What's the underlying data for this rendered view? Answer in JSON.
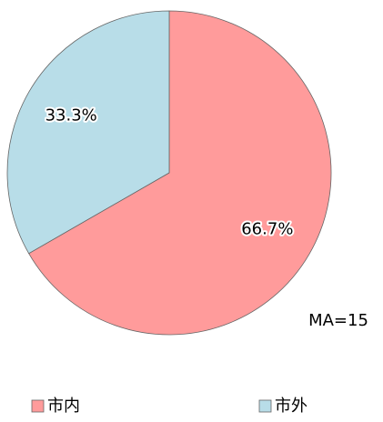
{
  "chart_data": {
    "type": "pie",
    "categories": [
      "市内",
      "市外"
    ],
    "values": [
      66.7,
      33.3
    ],
    "value_labels": [
      "66.7%",
      "33.3%"
    ],
    "colors": [
      "#ff9b9b",
      "#b8dde8"
    ],
    "annotation": "MA=15",
    "legend": "bottom"
  }
}
